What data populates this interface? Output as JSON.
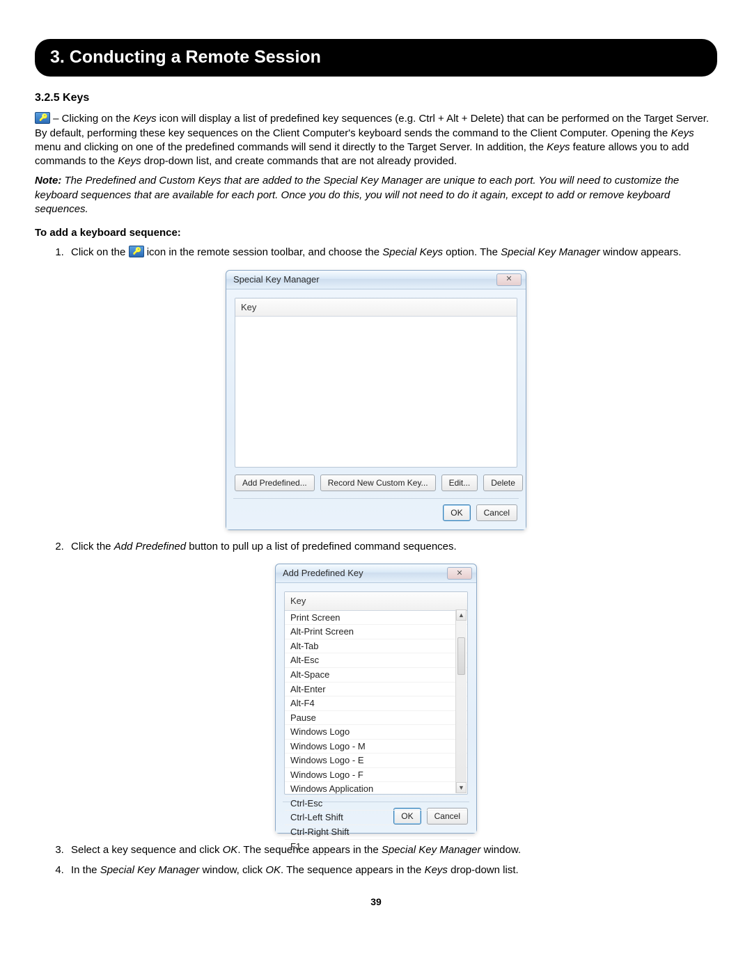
{
  "chapter_title": "3. Conducting a Remote Session",
  "section_heading": "3.2.5 Keys",
  "intro_para_prefix": "– Clicking on the ",
  "intro_para_keysword": "Keys",
  "intro_para_rest": " icon will display a list of predefined key sequences (e.g. Ctrl + Alt + Delete) that can be performed on the Target Server. By default, performing these key sequences on the Client Computer's keyboard sends the command to the Client Computer. Opening the ",
  "intro_para_keys2": "Keys",
  "intro_para_rest2": " menu and clicking on one of the predefined commands will send it directly to the Target Server. In addition, the ",
  "intro_para_keys3": "Keys",
  "intro_para_rest3": " feature allows you to add commands to the ",
  "intro_para_keys4": "Keys",
  "intro_para_rest4": " drop-down list, and create commands that are not already provided.",
  "note_label": "Note:",
  "note_text": " The Predefined and Custom Keys that are added to the Special Key Manager are unique to each port. You will need to customize the keyboard sequences that are available for each port. Once you do this, you will not need to do it again, except to add or remove keyboard sequences.",
  "subheading": "To add a keyboard sequence:",
  "step1_a": "Click on the ",
  "step1_b": " icon in the remote session toolbar, and choose the ",
  "step1_sk": "Special Keys",
  "step1_c": " option. The ",
  "step1_skm": "Special Key Manager",
  "step1_d": " window appears.",
  "step2_a": "Click the ",
  "step2_ap": "Add Predefined",
  "step2_b": " button to pull up a list of predefined command sequences.",
  "step3_a": "Select a key sequence and click ",
  "step3_ok": "OK",
  "step3_b": ". The sequence appears in the ",
  "step3_skm": "Special Key Manager",
  "step3_c": " window.",
  "step4_a": "In the ",
  "step4_skm": "Special Key Manager",
  "step4_b": " window, click ",
  "step4_ok": "OK",
  "step4_c": ". The sequence appears in the ",
  "step4_keys": "Keys",
  "step4_d": " drop-down list.",
  "page_number": "39",
  "win1": {
    "title": "Special Key Manager",
    "list_header": "Key",
    "buttons": {
      "add_predefined": "Add Predefined...",
      "record": "Record New Custom Key...",
      "edit": "Edit...",
      "delete": "Delete",
      "ok": "OK",
      "cancel": "Cancel"
    }
  },
  "win2": {
    "title": "Add Predefined Key",
    "list_header": "Key",
    "items": [
      "Print Screen",
      "Alt-Print Screen",
      "Alt-Tab",
      "Alt-Esc",
      "Alt-Space",
      "Alt-Enter",
      "Alt-F4",
      "Pause",
      "Windows Logo",
      "Windows Logo - M",
      "Windows Logo - E",
      "Windows Logo - F",
      "Windows Application",
      "Ctrl-Esc",
      "Ctrl-Left Shift",
      "Ctrl-Right Shift",
      "F1"
    ],
    "ok": "OK",
    "cancel": "Cancel"
  },
  "style": {
    "chapter_bg": "#000000",
    "chapter_fg": "#ffffff",
    "body_fg": "#000000",
    "win_border": "#8aa8c7",
    "win_grad_top": "#e9f2fb",
    "win_grad_bot": "#dce9f6",
    "btn_border": "#9fa6ad",
    "btn_default_border": "#3c7fb1",
    "list_border": "#b9c7d6"
  }
}
